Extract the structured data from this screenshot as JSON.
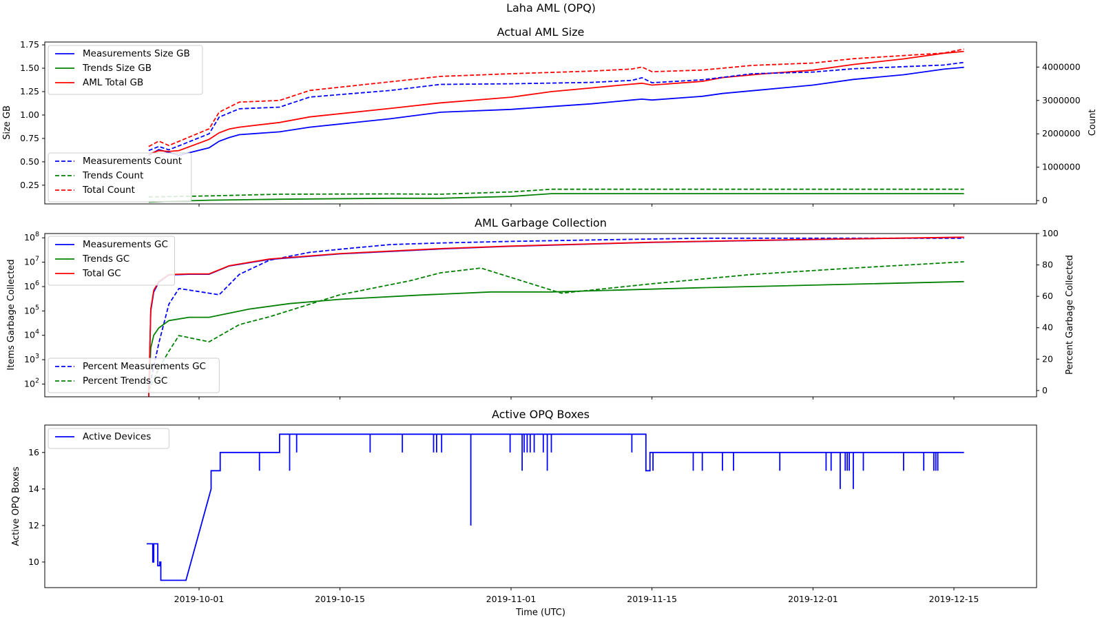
{
  "suptitle": "Laha AML (OPQ)",
  "xlabel": "Time (UTC)",
  "chart_data": [
    {
      "type": "line",
      "title": "Actual AML Size",
      "xlabel": "",
      "x_ticks": [
        "2019-10-01",
        "2019-10-15",
        "2019-11-01",
        "2019-11-15",
        "2019-12-01",
        "2019-12-15"
      ],
      "ylabel": "Size GB",
      "ylim": [
        0.05,
        1.78
      ],
      "y_ticks": [
        "0.25",
        "0.50",
        "0.75",
        "1.00",
        "1.25",
        "1.50",
        "1.75"
      ],
      "y2label": "Count",
      "y2lim": [
        -100000,
        4750000
      ],
      "y2_ticks": [
        "0",
        "1000000",
        "2000000",
        "3000000",
        "4000000"
      ],
      "legend_left": {
        "position": "upper-left",
        "entries": [
          "Measurements Size GB",
          "Trends Size GB",
          "AML Total GB"
        ]
      },
      "legend_right": {
        "position": "lower-left",
        "entries": [
          "Measurements Count",
          "Trends Count",
          "Total Count"
        ]
      },
      "series": [
        {
          "name": "Measurements Size GB",
          "axis": "left",
          "style": "solid",
          "color": "#0000ff",
          "x": [
            "2019-09-26",
            "2019-09-27",
            "2019-09-28",
            "2019-09-29",
            "2019-10-02",
            "2019-10-03",
            "2019-10-04",
            "2019-10-05",
            "2019-10-09",
            "2019-10-12",
            "2019-10-20",
            "2019-10-25",
            "2019-11-01",
            "2019-11-05",
            "2019-11-09",
            "2019-11-13",
            "2019-11-14",
            "2019-11-15",
            "2019-11-20",
            "2019-11-22",
            "2019-11-26",
            "2019-12-01",
            "2019-12-05",
            "2019-12-10",
            "2019-12-14",
            "2019-12-16"
          ],
          "values": [
            0.57,
            0.63,
            0.6,
            0.57,
            0.65,
            0.72,
            0.76,
            0.79,
            0.82,
            0.87,
            0.96,
            1.03,
            1.06,
            1.09,
            1.12,
            1.16,
            1.17,
            1.16,
            1.2,
            1.23,
            1.27,
            1.32,
            1.38,
            1.43,
            1.49,
            1.51
          ]
        },
        {
          "name": "Trends Size GB",
          "axis": "left",
          "style": "solid",
          "color": "#008000",
          "x": [
            "2019-09-26",
            "2019-10-02",
            "2019-10-09",
            "2019-10-20",
            "2019-10-25",
            "2019-11-01",
            "2019-11-05",
            "2019-11-20",
            "2019-12-16"
          ],
          "values": [
            0.07,
            0.09,
            0.1,
            0.11,
            0.11,
            0.13,
            0.16,
            0.16,
            0.16
          ]
        },
        {
          "name": "AML Total GB",
          "axis": "left",
          "style": "solid",
          "color": "#ff0000",
          "x": [
            "2019-09-26",
            "2019-09-27",
            "2019-09-28",
            "2019-09-29",
            "2019-10-02",
            "2019-10-03",
            "2019-10-04",
            "2019-10-05",
            "2019-10-09",
            "2019-10-12",
            "2019-10-20",
            "2019-10-25",
            "2019-11-01",
            "2019-11-05",
            "2019-11-09",
            "2019-11-13",
            "2019-11-14",
            "2019-11-15",
            "2019-11-20",
            "2019-11-22",
            "2019-11-26",
            "2019-12-01",
            "2019-12-05",
            "2019-12-10",
            "2019-12-14",
            "2019-12-16"
          ],
          "values": [
            0.58,
            0.62,
            0.61,
            0.62,
            0.74,
            0.81,
            0.85,
            0.87,
            0.92,
            0.98,
            1.07,
            1.13,
            1.19,
            1.25,
            1.29,
            1.33,
            1.34,
            1.32,
            1.36,
            1.4,
            1.44,
            1.48,
            1.54,
            1.6,
            1.66,
            1.68
          ]
        },
        {
          "name": "Measurements Count",
          "axis": "right",
          "style": "dashed",
          "color": "#0000ff",
          "x": [
            "2019-09-26",
            "2019-09-27",
            "2019-09-28",
            "2019-10-02",
            "2019-10-03",
            "2019-10-05",
            "2019-10-09",
            "2019-10-12",
            "2019-10-20",
            "2019-10-25",
            "2019-11-01",
            "2019-11-09",
            "2019-11-13",
            "2019-11-14",
            "2019-11-15",
            "2019-11-20",
            "2019-11-25",
            "2019-12-01",
            "2019-12-05",
            "2019-12-14",
            "2019-12-16"
          ],
          "values": [
            1500000,
            1620000,
            1520000,
            2000000,
            2500000,
            2750000,
            2800000,
            3100000,
            3300000,
            3480000,
            3500000,
            3540000,
            3600000,
            3680000,
            3530000,
            3620000,
            3800000,
            3850000,
            3950000,
            4060000,
            4140000
          ]
        },
        {
          "name": "Trends Count",
          "axis": "right",
          "style": "dashed",
          "color": "#008000",
          "x": [
            "2019-09-26",
            "2019-10-02",
            "2019-10-09",
            "2019-10-20",
            "2019-10-25",
            "2019-11-01",
            "2019-11-05",
            "2019-11-20",
            "2019-12-16"
          ],
          "values": [
            110000,
            140000,
            190000,
            200000,
            190000,
            260000,
            340000,
            340000,
            340000
          ]
        },
        {
          "name": "Total Count",
          "axis": "right",
          "style": "dashed",
          "color": "#ff0000",
          "x": [
            "2019-09-26",
            "2019-09-27",
            "2019-09-28",
            "2019-10-02",
            "2019-10-03",
            "2019-10-05",
            "2019-10-09",
            "2019-10-12",
            "2019-10-20",
            "2019-10-25",
            "2019-11-01",
            "2019-11-09",
            "2019-11-13",
            "2019-11-14",
            "2019-11-15",
            "2019-11-20",
            "2019-11-25",
            "2019-12-01",
            "2019-12-05",
            "2019-12-14",
            "2019-12-16"
          ],
          "values": [
            1620000,
            1780000,
            1650000,
            2150000,
            2650000,
            2950000,
            3000000,
            3300000,
            3560000,
            3720000,
            3800000,
            3880000,
            3940000,
            4000000,
            3860000,
            3910000,
            4050000,
            4120000,
            4250000,
            4420000,
            4540000
          ]
        }
      ]
    },
    {
      "type": "line",
      "title": "AML Garbage Collection",
      "ylabel": "Items Garbage Collected",
      "yscale": "log",
      "ylim": [
        30,
        150000000
      ],
      "y_ticks": [
        "10^2",
        "10^3",
        "10^4",
        "10^5",
        "10^6",
        "10^7",
        "10^8"
      ],
      "y2label": "Percent Garbage Collected",
      "y2lim": [
        -4,
        100
      ],
      "y2_ticks": [
        "0",
        "20",
        "40",
        "60",
        "80",
        "100"
      ],
      "legend_left": {
        "position": "upper-left",
        "entries": [
          "Measurements GC",
          "Trends GC",
          "Total GC"
        ]
      },
      "legend_right": {
        "position": "lower-left",
        "entries": [
          "Percent Measurements GC",
          "Percent Trends GC"
        ]
      },
      "series": [
        {
          "name": "Measurements GC",
          "axis": "left",
          "style": "solid",
          "color": "#0000ff",
          "x": [
            "2019-09-26",
            "2019-09-26.2",
            "2019-09-26.5",
            "2019-09-27",
            "2019-09-28",
            "2019-09-30",
            "2019-10-02",
            "2019-10-04",
            "2019-10-08",
            "2019-10-15",
            "2019-10-25",
            "2019-11-01",
            "2019-11-15",
            "2019-12-01",
            "2019-12-16"
          ],
          "values": [
            30,
            100000,
            600000,
            1500000,
            3000000,
            3200000,
            3200000,
            7000000,
            13000000,
            22000000,
            35000000,
            45000000,
            65000000,
            85000000,
            105000000
          ]
        },
        {
          "name": "Trends GC",
          "axis": "left",
          "style": "solid",
          "color": "#008000",
          "x": [
            "2019-09-26",
            "2019-09-26.2",
            "2019-09-26.5",
            "2019-09-27",
            "2019-09-28",
            "2019-09-30",
            "2019-10-02",
            "2019-10-06",
            "2019-10-10",
            "2019-10-15",
            "2019-10-23",
            "2019-10-30",
            "2019-11-05",
            "2019-11-20",
            "2019-12-16"
          ],
          "values": [
            30,
            3000,
            10000,
            20000,
            40000,
            55000,
            55000,
            120000,
            200000,
            300000,
            450000,
            600000,
            600000,
            900000,
            1600000
          ]
        },
        {
          "name": "Total GC",
          "axis": "left",
          "style": "solid",
          "color": "#ff0000",
          "x": [
            "2019-09-26",
            "2019-09-26.2",
            "2019-09-26.5",
            "2019-09-27",
            "2019-09-28",
            "2019-09-30",
            "2019-10-02",
            "2019-10-04",
            "2019-10-08",
            "2019-10-15",
            "2019-10-25",
            "2019-11-01",
            "2019-11-15",
            "2019-12-01",
            "2019-12-16"
          ],
          "values": [
            30,
            120000,
            700000,
            1600000,
            3100000,
            3300000,
            3300000,
            7200000,
            13500000,
            22500000,
            36000000,
            46000000,
            66000000,
            86000000,
            106000000
          ]
        },
        {
          "name": "Percent Measurements GC",
          "axis": "right",
          "style": "dashed",
          "color": "#0000ff",
          "x": [
            "2019-09-26",
            "2019-09-27",
            "2019-09-28",
            "2019-09-29",
            "2019-10-01",
            "2019-10-03",
            "2019-10-05",
            "2019-10-08",
            "2019-10-12",
            "2019-10-15",
            "2019-10-20",
            "2019-10-25",
            "2019-11-01",
            "2019-11-10",
            "2019-11-20",
            "2019-12-01",
            "2019-12-16"
          ],
          "values": [
            0,
            30,
            55,
            65,
            63,
            61,
            74,
            83,
            88,
            90,
            93,
            94,
            95,
            96,
            97,
            97,
            97
          ]
        },
        {
          "name": "Percent Trends GC",
          "axis": "right",
          "style": "dashed",
          "color": "#008000",
          "x": [
            "2019-09-26",
            "2019-09-27",
            "2019-09-28",
            "2019-09-29",
            "2019-10-02",
            "2019-10-05",
            "2019-10-08",
            "2019-10-15",
            "2019-10-22",
            "2019-10-25",
            "2019-10-29",
            "2019-11-06",
            "2019-11-15",
            "2019-11-25",
            "2019-12-05",
            "2019-12-16"
          ],
          "values": [
            0,
            14,
            25,
            35,
            31,
            42,
            47,
            61,
            70,
            75,
            78,
            62,
            68,
            74,
            78,
            82
          ]
        }
      ]
    },
    {
      "type": "line",
      "title": "Active OPQ Boxes",
      "ylabel": "Active OPQ Boxes",
      "ylim": [
        8.6,
        17.5
      ],
      "y_ticks": [
        "10",
        "12",
        "14",
        "16"
      ],
      "legend": {
        "position": "upper-left",
        "entries": [
          "Active Devices"
        ]
      },
      "series": [
        {
          "name": "Active Devices",
          "style": "solid",
          "color": "#0000ff",
          "x": [
            "2019-09-25.8",
            "2019-09-26.4",
            "2019-09-26.4",
            "2019-09-26.5",
            "2019-09-26.5",
            "2019-09-26.9",
            "2019-09-26.9",
            "2019-09-27.1",
            "2019-09-27.1",
            "2019-09-27.2",
            "2019-09-27.2",
            "2019-09-29.7",
            "2019-10-02.2",
            "2019-10-02.2",
            "2019-10-03.1",
            "2019-10-03.1",
            "2019-10-09.0",
            "2019-10-09.0",
            "2019-11-14.4",
            "2019-11-14.4",
            "2019-11-14.8",
            "2019-11-14.8",
            "2019-12-16.0"
          ],
          "values": [
            11,
            11,
            10,
            10,
            11,
            11,
            9.8,
            9.8,
            10,
            10,
            9,
            9,
            14,
            15,
            15,
            16,
            16,
            17,
            17,
            15,
            15,
            16,
            16
          ],
          "dips": [
            {
              "x": "2019-10-07.0",
              "to": 15,
              "level": 16
            },
            {
              "x": "2019-10-10.0",
              "to": 15,
              "level": 17
            },
            {
              "x": "2019-10-10.7",
              "to": 16,
              "level": 17
            },
            {
              "x": "2019-10-18.0",
              "to": 16,
              "level": 17
            },
            {
              "x": "2019-10-21.2",
              "to": 16,
              "level": 17
            },
            {
              "x": "2019-10-24.3",
              "to": 16,
              "level": 17
            },
            {
              "x": "2019-10-24.6",
              "to": 16,
              "level": 17
            },
            {
              "x": "2019-10-25.1",
              "to": 16,
              "level": 17
            },
            {
              "x": "2019-10-28.0",
              "to": 12,
              "level": 17
            },
            {
              "x": "2019-10-31.9",
              "to": 16,
              "level": 17
            },
            {
              "x": "2019-11-02.1",
              "to": 15,
              "level": 17
            },
            {
              "x": "2019-11-02.3",
              "to": 16,
              "level": 17
            },
            {
              "x": "2019-11-02.6",
              "to": 16,
              "level": 17
            },
            {
              "x": "2019-11-02.9",
              "to": 16,
              "level": 17
            },
            {
              "x": "2019-11-03.3",
              "to": 16,
              "level": 17
            },
            {
              "x": "2019-11-04.2",
              "to": 16,
              "level": 17
            },
            {
              "x": "2019-11-04.6",
              "to": 15,
              "level": 17
            },
            {
              "x": "2019-11-05.0",
              "to": 16,
              "level": 17
            },
            {
              "x": "2019-11-13.0",
              "to": 16,
              "level": 17
            },
            {
              "x": "2019-11-15.1",
              "to": 15,
              "level": 16
            },
            {
              "x": "2019-11-19.1",
              "to": 15,
              "level": 16
            },
            {
              "x": "2019-11-20.0",
              "to": 15,
              "level": 16
            },
            {
              "x": "2019-11-22.0",
              "to": 15,
              "level": 16
            },
            {
              "x": "2019-11-23.1",
              "to": 15,
              "level": 16
            },
            {
              "x": "2019-11-27.7",
              "to": 15,
              "level": 16
            },
            {
              "x": "2019-12-02.3",
              "to": 15,
              "level": 16
            },
            {
              "x": "2019-12-02.8",
              "to": 15,
              "level": 16
            },
            {
              "x": "2019-12-03.7",
              "to": 14,
              "level": 16
            },
            {
              "x": "2019-12-04.2",
              "to": 15,
              "level": 16
            },
            {
              "x": "2019-12-04.4",
              "to": 15,
              "level": 16
            },
            {
              "x": "2019-12-04.6",
              "to": 15,
              "level": 16
            },
            {
              "x": "2019-12-05.0",
              "to": 14,
              "level": 16
            },
            {
              "x": "2019-12-06.0",
              "to": 15,
              "level": 16
            },
            {
              "x": "2019-12-10.0",
              "to": 15,
              "level": 16
            },
            {
              "x": "2019-12-12.0",
              "to": 15,
              "level": 16
            },
            {
              "x": "2019-12-13.0",
              "to": 15,
              "level": 16
            },
            {
              "x": "2019-12-13.2",
              "to": 15,
              "level": 16
            },
            {
              "x": "2019-12-13.4",
              "to": 15,
              "level": 16
            }
          ]
        }
      ]
    }
  ]
}
